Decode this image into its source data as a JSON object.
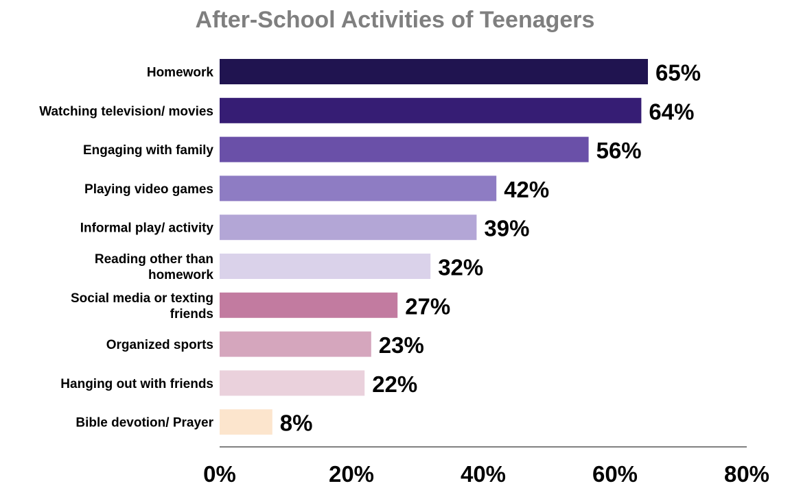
{
  "chart_data": {
    "type": "bar",
    "orientation": "horizontal",
    "title": "After-School Activities of Teenagers",
    "categories": [
      "Homework",
      "Watching television/ movies",
      "Engaging with family",
      "Playing video games",
      "Informal play/ activity",
      "Reading other than homework",
      "Social media or texting friends",
      "Organized sports",
      "Hanging out with friends",
      "Bible devotion/ Prayer"
    ],
    "category_lines": [
      [
        "Homework"
      ],
      [
        "Watching television/ movies"
      ],
      [
        "Engaging with family"
      ],
      [
        "Playing video games"
      ],
      [
        "Informal play/ activity"
      ],
      [
        "Reading other than",
        "homework"
      ],
      [
        "Social media or texting",
        "friends"
      ],
      [
        "Organized sports"
      ],
      [
        "Hanging out with friends"
      ],
      [
        "Bible devotion/ Prayer"
      ]
    ],
    "values": [
      65,
      64,
      56,
      42,
      39,
      32,
      27,
      23,
      22,
      8
    ],
    "value_labels": [
      "65%",
      "64%",
      "56%",
      "42%",
      "39%",
      "32%",
      "27%",
      "23%",
      "22%",
      "8%"
    ],
    "colors": [
      "#201450",
      "#361d74",
      "#6a50a8",
      "#8e7cc3",
      "#b3a6d6",
      "#dad2ea",
      "#c27ba0",
      "#d5a6bd",
      "#ead1dc",
      "#fce5cd"
    ],
    "xlim": [
      0,
      80
    ],
    "xticks": [
      0,
      20,
      40,
      60,
      80
    ],
    "xtick_labels": [
      "0%",
      "20%",
      "40%",
      "60%",
      "80%"
    ],
    "grid": false,
    "legend": "none"
  }
}
